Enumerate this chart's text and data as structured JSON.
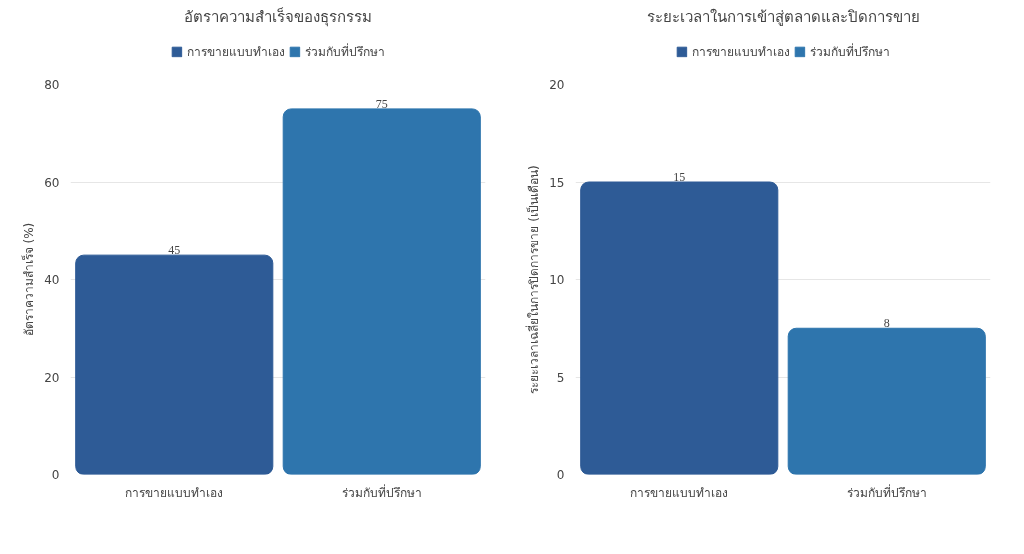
{
  "chart_data": [
    {
      "type": "bar",
      "title": "อัตราความสำเร็จของธุรกรรม",
      "categories": [
        "การขายแบบทำเอง",
        "ร่วมกับที่ปรึกษา"
      ],
      "series": [
        {
          "name": "การขายแบบทำเอง",
          "color": "#2e5b96",
          "values": [
            45,
            null
          ]
        },
        {
          "name": "ร่วมกับที่ปรึกษา",
          "color": "#2e75ad",
          "values": [
            null,
            75
          ]
        }
      ],
      "ylabel": "อัตราความสำเร็จ (%)",
      "ylim": [
        0,
        80
      ],
      "yticks": [
        0,
        20,
        40,
        60,
        80
      ],
      "grid": "y",
      "legend": "top",
      "data_labels": true
    },
    {
      "type": "bar",
      "title": "ระยะเวลาในการเข้าสู่ตลาดและปิดการขาย",
      "categories": [
        "การขายแบบทำเอง",
        "ร่วมกับที่ปรึกษา"
      ],
      "series": [
        {
          "name": "การขายแบบทำเอง",
          "color": "#2e5b96",
          "values": [
            15,
            null
          ],
          "value_labels": [
            "15",
            null
          ]
        },
        {
          "name": "ร่วมกับที่ปรึกษา",
          "color": "#2e75ad",
          "values": [
            null,
            7.5
          ],
          "value_labels": [
            null,
            "8"
          ]
        }
      ],
      "ylabel": "ระยะเวลาเฉลี่ยในการปิดการขาย (เป็นเดือน)",
      "ylim": [
        0,
        20
      ],
      "yticks": [
        0,
        5,
        10,
        15,
        20
      ],
      "grid": "y",
      "legend": "top"
    }
  ]
}
